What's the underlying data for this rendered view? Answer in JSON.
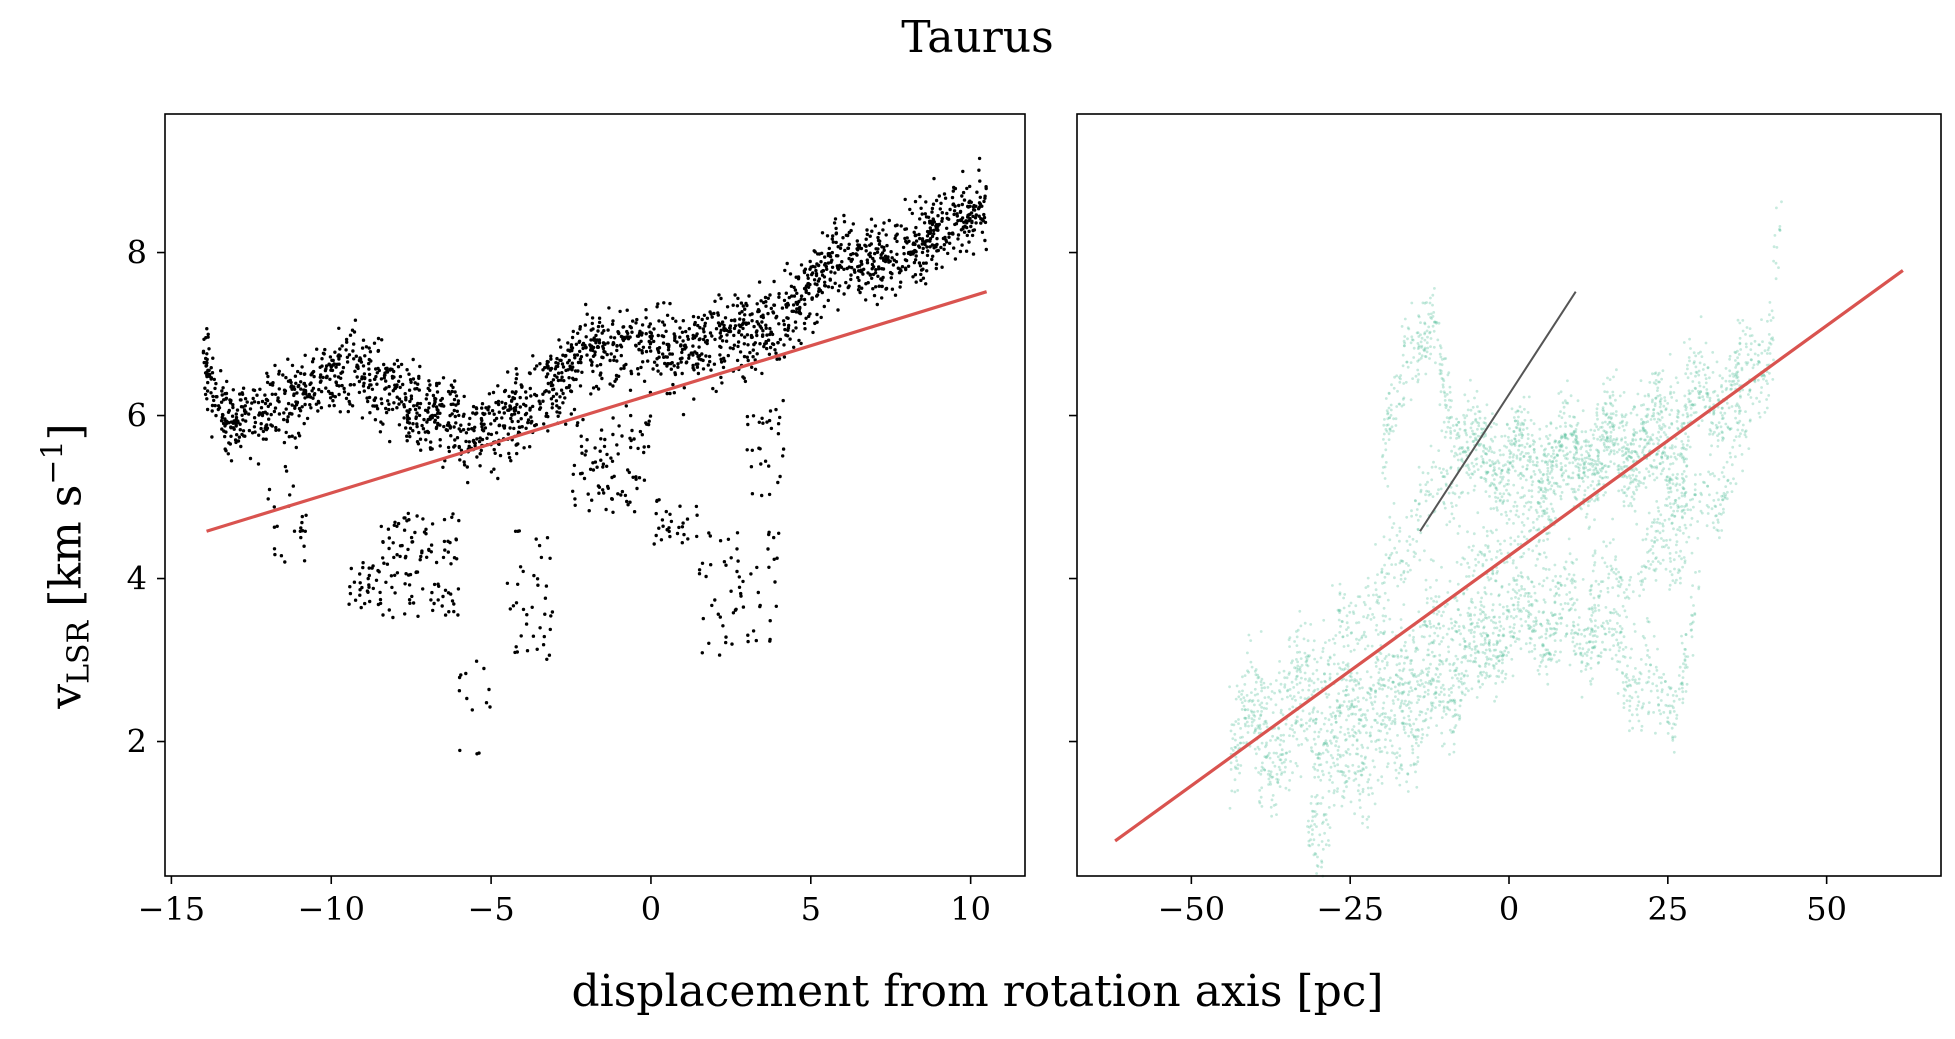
{
  "figure": {
    "title": "Taurus",
    "xlabel": "displacement from rotation axis [pc]",
    "ylabel_main": "v",
    "ylabel_sub": "LSR",
    "ylabel_unit_pre": " [km s",
    "ylabel_sup": "−1",
    "ylabel_unit_post": "]"
  },
  "colors": {
    "left_points": "#000000",
    "right_points": "#5fc2a0",
    "fit_line": "#d9534f",
    "gradient_line": "#555555"
  },
  "chart_data": [
    {
      "type": "scatter",
      "panel": "left",
      "xlim": [
        -15.2,
        11.7
      ],
      "ylim": [
        0.35,
        9.7
      ],
      "xticks": [
        -15,
        -10,
        -5,
        0,
        5,
        10
      ],
      "xtick_labels": [
        "−15",
        "−10",
        "−5",
        "0",
        "5",
        "10"
      ],
      "yticks": [
        2,
        4,
        6,
        8
      ],
      "ytick_labels": [
        "2",
        "4",
        "6",
        "8"
      ],
      "grid": false,
      "point_color": "#000000",
      "fit_line": {
        "x": [
          -13.9,
          10.5
        ],
        "y": [
          4.58,
          7.52
        ]
      },
      "trend": [
        [
          -14.0,
          6.8
        ],
        [
          -13.5,
          6.0
        ],
        [
          -12.5,
          6.0
        ],
        [
          -11.5,
          6.2
        ],
        [
          -10.5,
          6.4
        ],
        [
          -9.5,
          6.6
        ],
        [
          -8.5,
          6.4
        ],
        [
          -7.5,
          6.2
        ],
        [
          -6.5,
          6.0
        ],
        [
          -5.7,
          5.75
        ],
        [
          -5.0,
          5.8
        ],
        [
          -4.0,
          6.1
        ],
        [
          -3.0,
          6.4
        ],
        [
          -2.0,
          6.8
        ],
        [
          -1.0,
          6.9
        ],
        [
          0.0,
          6.8
        ],
        [
          1.0,
          6.8
        ],
        [
          2.0,
          6.9
        ],
        [
          3.0,
          7.0
        ],
        [
          4.0,
          7.1
        ],
        [
          5.0,
          7.6
        ],
        [
          6.0,
          8.0
        ],
        [
          7.0,
          7.9
        ],
        [
          8.0,
          8.0
        ],
        [
          9.0,
          8.3
        ],
        [
          10.5,
          8.6
        ]
      ],
      "clusters": [
        {
          "x": [
            -8.5,
            -6.0
          ],
          "y": [
            3.5,
            4.8
          ],
          "n": 110
        },
        {
          "x": [
            -9.5,
            -8.5
          ],
          "y": [
            3.6,
            4.2
          ],
          "n": 30
        },
        {
          "x": [
            -4.5,
            -3.0
          ],
          "y": [
            3.0,
            4.6
          ],
          "n": 40
        },
        {
          "x": [
            -6.0,
            -5.0
          ],
          "y": [
            1.8,
            3.0
          ],
          "n": 14
        },
        {
          "x": [
            -12.0,
            -10.5
          ],
          "y": [
            4.2,
            5.5
          ],
          "n": 25
        },
        {
          "x": [
            -2.5,
            0.0
          ],
          "y": [
            4.8,
            6.0
          ],
          "n": 90
        },
        {
          "x": [
            0.0,
            1.5
          ],
          "y": [
            4.4,
            5.0
          ],
          "n": 30
        },
        {
          "x": [
            1.5,
            4.0
          ],
          "y": [
            3.0,
            4.6
          ],
          "n": 60
        },
        {
          "x": [
            3.0,
            4.2
          ],
          "y": [
            5.0,
            6.3
          ],
          "n": 30
        }
      ]
    },
    {
      "type": "scatter",
      "panel": "right",
      "xlim": [
        -68,
        68
      ],
      "ylim": [
        0.35,
        9.7
      ],
      "xticks": [
        -50,
        -25,
        0,
        25,
        50
      ],
      "xtick_labels": [
        "−50",
        "−25",
        "0",
        "25",
        "50"
      ],
      "yticks": [
        2,
        4,
        6,
        8
      ],
      "ytick_labels": [
        "",
        "",
        "",
        ""
      ],
      "grid": false,
      "point_color": "#5fc2a0",
      "fit_line": {
        "x": [
          -62,
          62
        ],
        "y": [
          0.78,
          7.78
        ]
      },
      "gradient_line": {
        "x": [
          -14,
          10.5
        ],
        "y": [
          4.58,
          7.52
        ]
      },
      "bands": [
        [
          [
            -44,
            1.9
          ],
          [
            -35,
            2.3
          ],
          [
            -25,
            2.6
          ],
          [
            -15,
            3.2
          ],
          [
            -8,
            3.8
          ],
          [
            0,
            4.5
          ],
          [
            10,
            5.2
          ],
          [
            20,
            5.7
          ],
          [
            30,
            6.0
          ],
          [
            40,
            6.6
          ],
          [
            43,
            8.5
          ]
        ],
        [
          [
            -44,
            2.4
          ],
          [
            -30,
            3.0
          ],
          [
            -20,
            4.0
          ],
          [
            -12,
            5.0
          ],
          [
            -5,
            5.3
          ],
          [
            5,
            5.5
          ],
          [
            15,
            5.8
          ],
          [
            25,
            6.2
          ],
          [
            35,
            6.4
          ],
          [
            42,
            7.0
          ]
        ],
        [
          [
            -40,
            1.5
          ],
          [
            -30,
            2.0
          ],
          [
            -18,
            2.6
          ],
          [
            -8,
            3.2
          ],
          [
            0,
            3.6
          ],
          [
            10,
            3.8
          ],
          [
            20,
            4.0
          ],
          [
            30,
            4.8
          ],
          [
            38,
            5.8
          ]
        ],
        [
          [
            -20,
            5.2
          ],
          [
            -16,
            7.0
          ],
          [
            -12,
            6.8
          ],
          [
            -8,
            5.8
          ],
          [
            0,
            5.5
          ],
          [
            10,
            5.6
          ],
          [
            20,
            5.5
          ],
          [
            28,
            5.2
          ]
        ],
        [
          [
            -32,
            0.9
          ],
          [
            -25,
            1.6
          ],
          [
            -15,
            2.2
          ],
          [
            -5,
            3.0
          ],
          [
            5,
            3.4
          ],
          [
            15,
            3.2
          ],
          [
            25,
            2.4
          ],
          [
            30,
            3.6
          ]
        ]
      ]
    }
  ]
}
